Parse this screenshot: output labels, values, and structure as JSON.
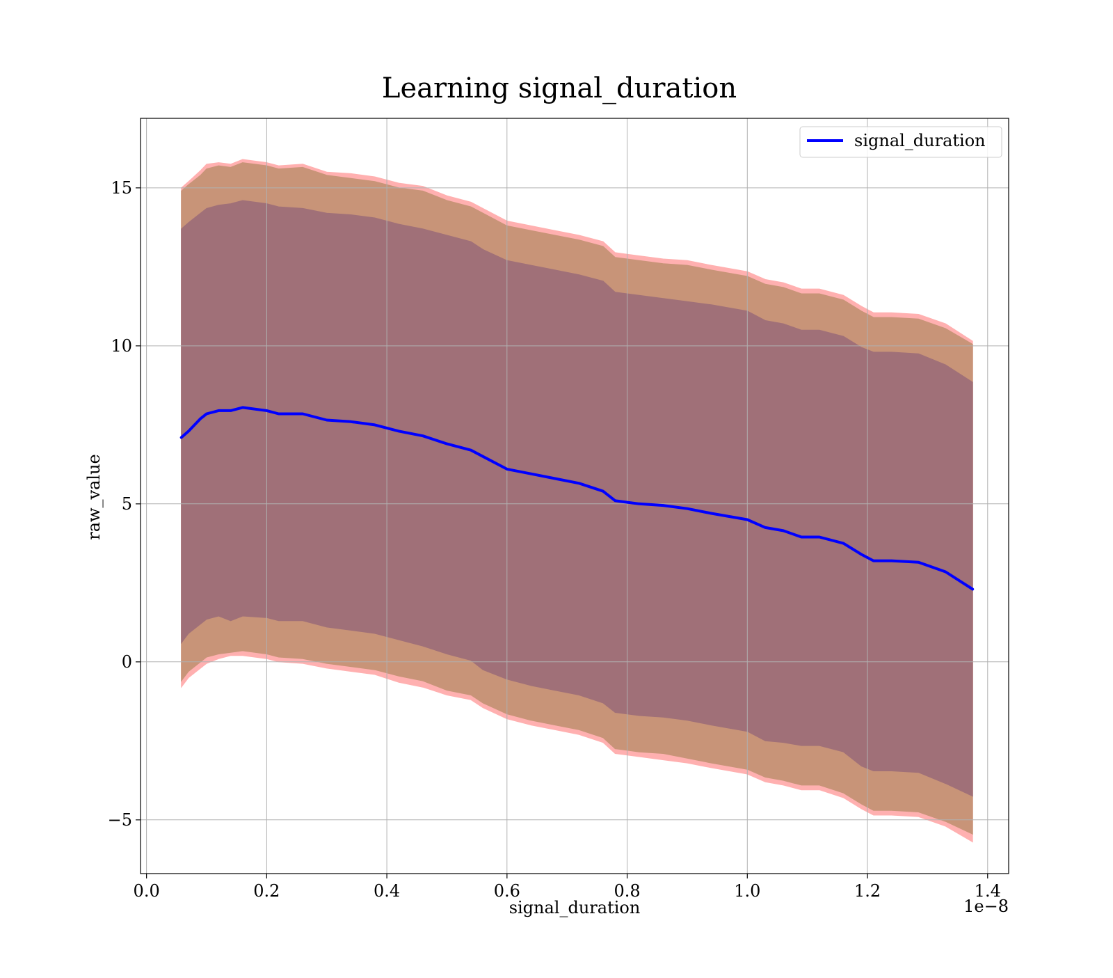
{
  "chart_data": {
    "type": "line",
    "title": "Learning signal_duration",
    "xlabel": "signal_duration",
    "ylabel": "raw_value",
    "x_offset_text": "1e−8",
    "xlim": [
      -0.01,
      1.435
    ],
    "ylim": [
      -6.7,
      17.2
    ],
    "x_ticks": [
      0.0,
      0.2,
      0.4,
      0.6,
      0.8,
      1.0,
      1.2,
      1.4
    ],
    "x_tick_labels": [
      "0.0",
      "0.2",
      "0.4",
      "0.6",
      "0.8",
      "1.0",
      "1.2",
      "1.4"
    ],
    "y_ticks": [
      -5,
      0,
      5,
      10,
      15
    ],
    "y_tick_labels": [
      "−5",
      "0",
      "5",
      "10",
      "15"
    ],
    "grid": true,
    "legend": {
      "placement": "top-right",
      "entries": [
        "signal_duration"
      ]
    },
    "colors": {
      "line": "#0000ff",
      "outer_band": "#ffb0b0",
      "middle_band": "#c89478",
      "inner_band": "#a07078",
      "grid": "#b0b0b0"
    },
    "x": [
      0.058,
      0.07,
      0.09,
      0.1,
      0.12,
      0.14,
      0.16,
      0.2,
      0.22,
      0.26,
      0.3,
      0.34,
      0.38,
      0.42,
      0.46,
      0.5,
      0.54,
      0.56,
      0.6,
      0.64,
      0.68,
      0.72,
      0.76,
      0.78,
      0.8,
      0.82,
      0.86,
      0.9,
      0.94,
      1.0,
      1.03,
      1.06,
      1.09,
      1.12,
      1.16,
      1.19,
      1.21,
      1.24,
      1.285,
      1.33,
      1.375
    ],
    "series": [
      {
        "name": "signal_duration",
        "values": [
          7.1,
          7.3,
          7.7,
          7.85,
          7.95,
          7.95,
          8.05,
          7.95,
          7.85,
          7.85,
          7.65,
          7.6,
          7.5,
          7.3,
          7.15,
          6.9,
          6.7,
          6.5,
          6.1,
          5.95,
          5.8,
          5.65,
          5.4,
          5.1,
          5.05,
          5.0,
          4.95,
          4.85,
          4.7,
          4.5,
          4.25,
          4.15,
          3.95,
          3.95,
          3.75,
          3.4,
          3.2,
          3.2,
          3.15,
          2.85,
          2.3
        ]
      }
    ],
    "bands": [
      {
        "lower": [
          -0.8,
          -0.5,
          -0.2,
          -0.05,
          0.1,
          0.2,
          0.2,
          0.1,
          0.0,
          -0.05,
          -0.2,
          -0.3,
          -0.4,
          -0.65,
          -0.8,
          -1.05,
          -1.2,
          -1.45,
          -1.8,
          -2.0,
          -2.15,
          -2.3,
          -2.55,
          -2.9,
          -2.95,
          -3.0,
          -3.1,
          -3.2,
          -3.35,
          -3.55,
          -3.8,
          -3.9,
          -4.05,
          -4.05,
          -4.3,
          -4.65,
          -4.85,
          -4.85,
          -4.9,
          -5.2,
          -5.7
        ],
        "upper": [
          15.0,
          15.2,
          15.55,
          15.75,
          15.8,
          15.75,
          15.9,
          15.8,
          15.7,
          15.75,
          15.5,
          15.45,
          15.35,
          15.15,
          15.05,
          14.75,
          14.55,
          14.35,
          13.95,
          13.8,
          13.65,
          13.5,
          13.3,
          12.95,
          12.9,
          12.85,
          12.75,
          12.7,
          12.55,
          12.35,
          12.1,
          12.0,
          11.8,
          11.8,
          11.6,
          11.25,
          11.05,
          11.05,
          11.0,
          10.7,
          10.15
        ]
      },
      {
        "lower": [
          -0.6,
          -0.3,
          0.0,
          0.15,
          0.25,
          0.3,
          0.35,
          0.25,
          0.15,
          0.1,
          -0.05,
          -0.15,
          -0.25,
          -0.45,
          -0.6,
          -0.9,
          -1.05,
          -1.3,
          -1.65,
          -1.85,
          -2.0,
          -2.15,
          -2.4,
          -2.75,
          -2.8,
          -2.85,
          -2.9,
          -3.05,
          -3.2,
          -3.4,
          -3.65,
          -3.75,
          -3.9,
          -3.9,
          -4.15,
          -4.5,
          -4.7,
          -4.7,
          -4.75,
          -5.05,
          -5.45
        ],
        "upper": [
          14.9,
          15.1,
          15.4,
          15.6,
          15.7,
          15.65,
          15.8,
          15.7,
          15.6,
          15.65,
          15.4,
          15.3,
          15.2,
          15.0,
          14.9,
          14.6,
          14.4,
          14.2,
          13.8,
          13.65,
          13.5,
          13.35,
          13.15,
          12.8,
          12.75,
          12.7,
          12.6,
          12.55,
          12.4,
          12.2,
          11.95,
          11.85,
          11.65,
          11.65,
          11.45,
          11.1,
          10.9,
          10.9,
          10.85,
          10.55,
          10.05
        ]
      },
      {
        "lower": [
          0.6,
          0.9,
          1.2,
          1.35,
          1.45,
          1.3,
          1.45,
          1.4,
          1.3,
          1.3,
          1.1,
          1.0,
          0.9,
          0.7,
          0.5,
          0.25,
          0.05,
          -0.25,
          -0.55,
          -0.75,
          -0.9,
          -1.05,
          -1.3,
          -1.6,
          -1.65,
          -1.7,
          -1.75,
          -1.85,
          -2.0,
          -2.2,
          -2.5,
          -2.55,
          -2.65,
          -2.65,
          -2.85,
          -3.3,
          -3.45,
          -3.45,
          -3.5,
          -3.85,
          -4.25
        ],
        "upper": [
          13.7,
          13.9,
          14.2,
          14.35,
          14.45,
          14.5,
          14.6,
          14.5,
          14.4,
          14.35,
          14.2,
          14.15,
          14.05,
          13.85,
          13.7,
          13.5,
          13.3,
          13.05,
          12.7,
          12.55,
          12.4,
          12.25,
          12.05,
          11.7,
          11.65,
          11.6,
          11.5,
          11.4,
          11.3,
          11.1,
          10.8,
          10.7,
          10.5,
          10.5,
          10.3,
          9.95,
          9.8,
          9.8,
          9.75,
          9.4,
          8.85
        ]
      }
    ]
  }
}
